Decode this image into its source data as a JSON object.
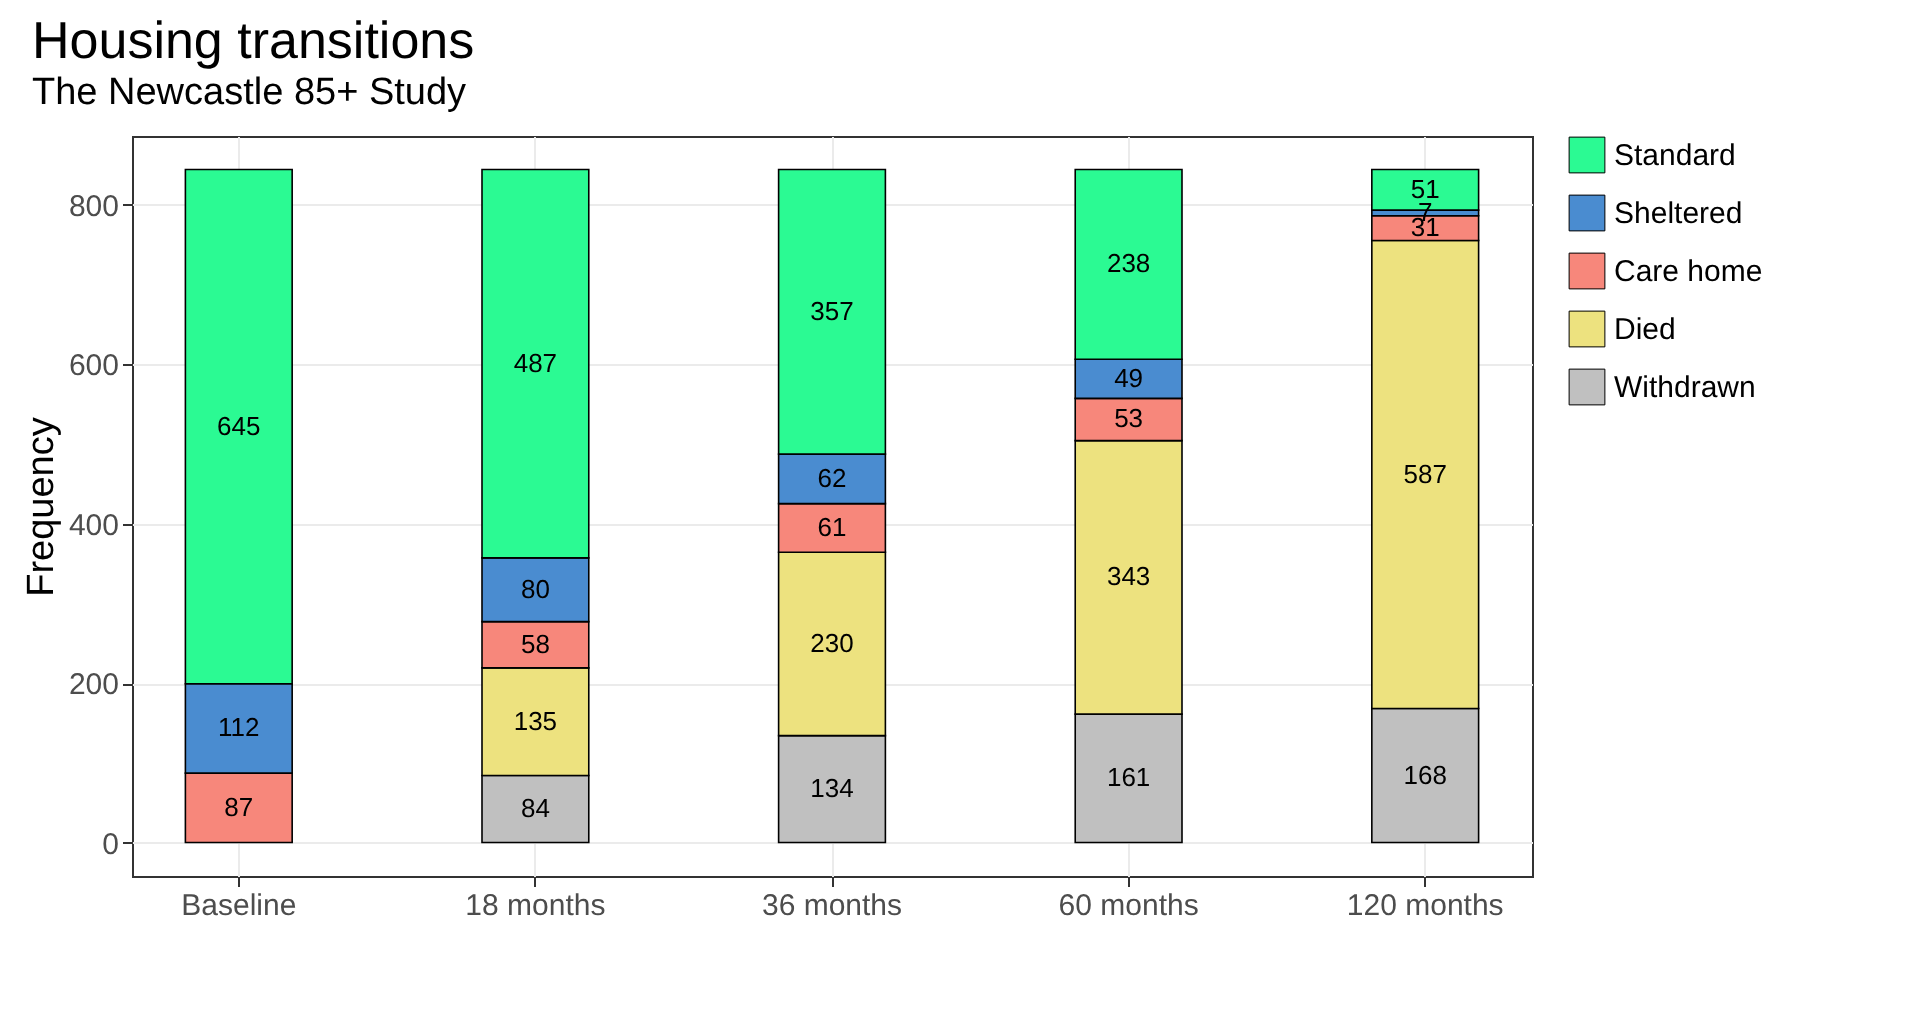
{
  "chart_data": {
    "type": "bar",
    "title": "Housing transitions",
    "subtitle": "The Newcastle 85+ Study",
    "ylabel": "Frequency",
    "categories": [
      "Baseline",
      "18 months",
      "36 months",
      "60 months",
      "120 months"
    ],
    "stacked": true,
    "data_labels": true,
    "legend": "right",
    "grid": true,
    "ylim": [
      -42,
      886
    ],
    "yticks": [
      0,
      200,
      400,
      600,
      800
    ],
    "series": [
      {
        "name": "Withdrawn",
        "color": "#c0c0c0",
        "values": [
          null,
          84,
          134,
          161,
          168
        ]
      },
      {
        "name": "Died",
        "color": "#ede27f",
        "values": [
          null,
          135,
          230,
          343,
          587
        ]
      },
      {
        "name": "Care home",
        "color": "#f7877b",
        "values": [
          87,
          58,
          61,
          53,
          31
        ]
      },
      {
        "name": "Sheltered",
        "color": "#4a8cd0",
        "values": [
          112,
          80,
          62,
          49,
          7
        ]
      },
      {
        "name": "Standard",
        "color": "#2bfa93",
        "values": [
          645,
          487,
          357,
          238,
          51
        ]
      }
    ]
  }
}
